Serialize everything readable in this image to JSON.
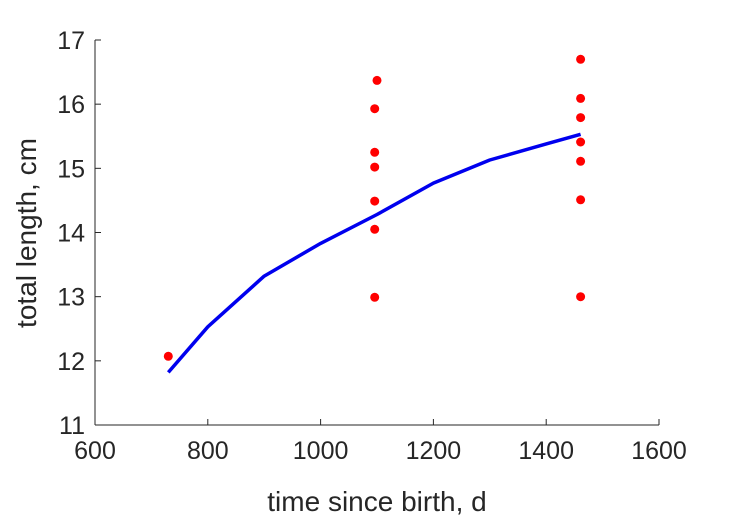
{
  "chart_data": {
    "type": "scatter",
    "title": "",
    "xlabel": "time since birth, d",
    "ylabel": "total length, cm",
    "xlim": [
      600,
      1600
    ],
    "ylim": [
      11,
      17
    ],
    "xticks": [
      600,
      800,
      1000,
      1200,
      1400,
      1600
    ],
    "yticks": [
      11,
      12,
      13,
      14,
      15,
      16,
      17
    ],
    "xtick_labels": [
      "600",
      "800",
      "1000",
      "1200",
      "1400",
      "1600"
    ],
    "ytick_labels": [
      "11",
      "12",
      "13",
      "14",
      "15",
      "16",
      "17"
    ],
    "grid": false,
    "legend": "none",
    "series": [
      {
        "kind": "points",
        "color": "#ff0000",
        "x": [
          730,
          1096,
          1096,
          1096,
          1096,
          1096,
          1096,
          1100,
          1461,
          1461,
          1461,
          1461,
          1461,
          1461,
          1461
        ],
        "y": [
          12.07,
          12.99,
          14.05,
          14.49,
          15.02,
          15.25,
          15.93,
          16.37,
          13.0,
          14.51,
          15.11,
          15.41,
          15.79,
          16.09,
          16.7
        ]
      },
      {
        "kind": "line",
        "color": "#0000ee",
        "x": [
          730,
          800,
          900,
          1000,
          1100,
          1200,
          1300,
          1400,
          1461
        ],
        "y": [
          11.82,
          12.53,
          13.32,
          13.83,
          14.28,
          14.77,
          15.13,
          15.38,
          15.53
        ]
      }
    ]
  }
}
